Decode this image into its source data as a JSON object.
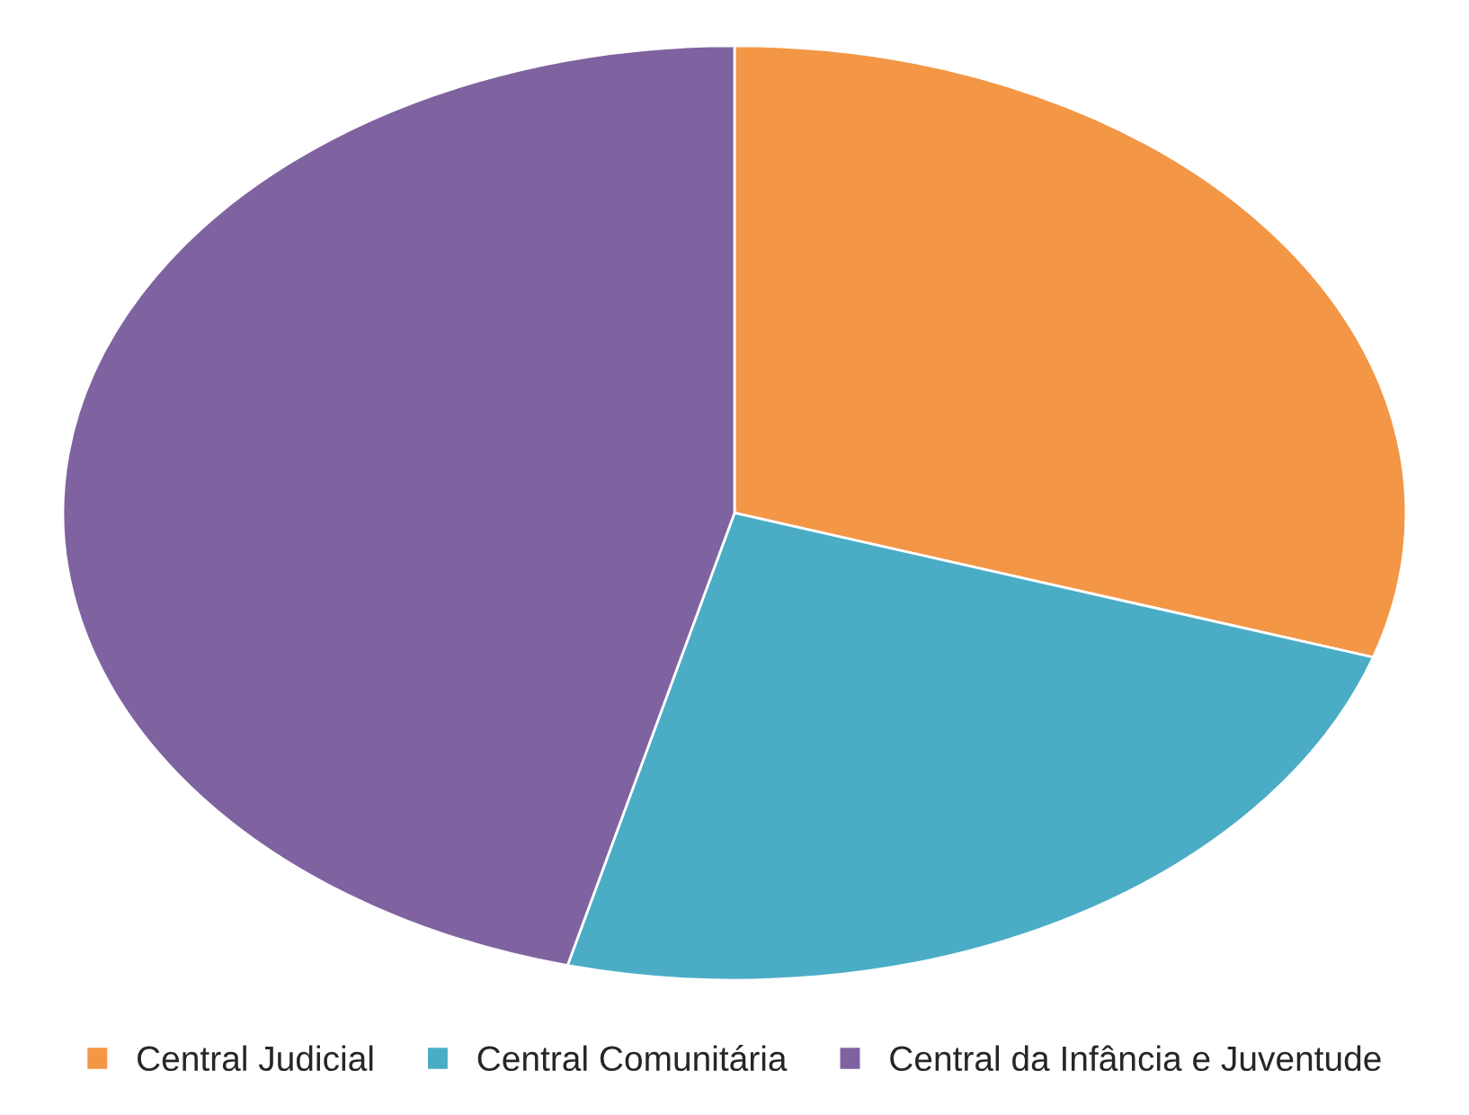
{
  "chart_data": {
    "type": "pie",
    "categories": [
      "Central Judicial",
      "Central Comunitária",
      "Central da Infância e Juventude"
    ],
    "values": [
      30,
      24,
      46
    ],
    "colors": [
      "#f39646",
      "#4bacc6",
      "#7f63a0"
    ],
    "legend": "bottom"
  }
}
